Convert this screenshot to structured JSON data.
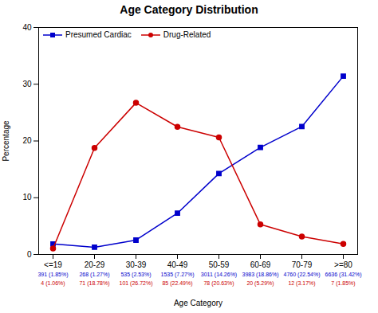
{
  "chart_data": {
    "type": "line",
    "title": "Age Category Distribution",
    "xlabel": "Age Category",
    "ylabel": "Percentage",
    "categories": [
      "<=19",
      "20-29",
      "30-39",
      "40-49",
      "50-59",
      "60-69",
      "70-79",
      ">=80"
    ],
    "series": [
      {
        "name": "Presumed Cardiac",
        "color": "#0000CC",
        "marker": "square",
        "values": [
          1.85,
          1.27,
          2.53,
          7.27,
          14.26,
          18.86,
          22.54,
          31.42
        ],
        "annotations": [
          "391 (1.85%)",
          "268 (1.27%)",
          "535 (2.53%)",
          "1535 (7.27%)",
          "3011 (14.26%)",
          "3983 (18.86%)",
          "4760 (22.54%)",
          "6636 (31.42%)"
        ]
      },
      {
        "name": "Drug-Related",
        "color": "#CC0000",
        "marker": "circle",
        "values": [
          1.06,
          18.78,
          26.72,
          22.49,
          20.63,
          5.29,
          3.17,
          1.85
        ],
        "annotations": [
          "4 (1.06%)",
          "71 (18.78%)",
          "101 (26.72%)",
          "85 (22.49%)",
          "78 (20.63%)",
          "20 (5.29%)",
          "12 (3.17%)",
          "7 (1.85%)"
        ]
      }
    ],
    "ylim": [
      0,
      40
    ],
    "yticks": [
      0,
      10,
      20,
      30,
      40
    ],
    "grid": false,
    "legend": "upper left"
  }
}
